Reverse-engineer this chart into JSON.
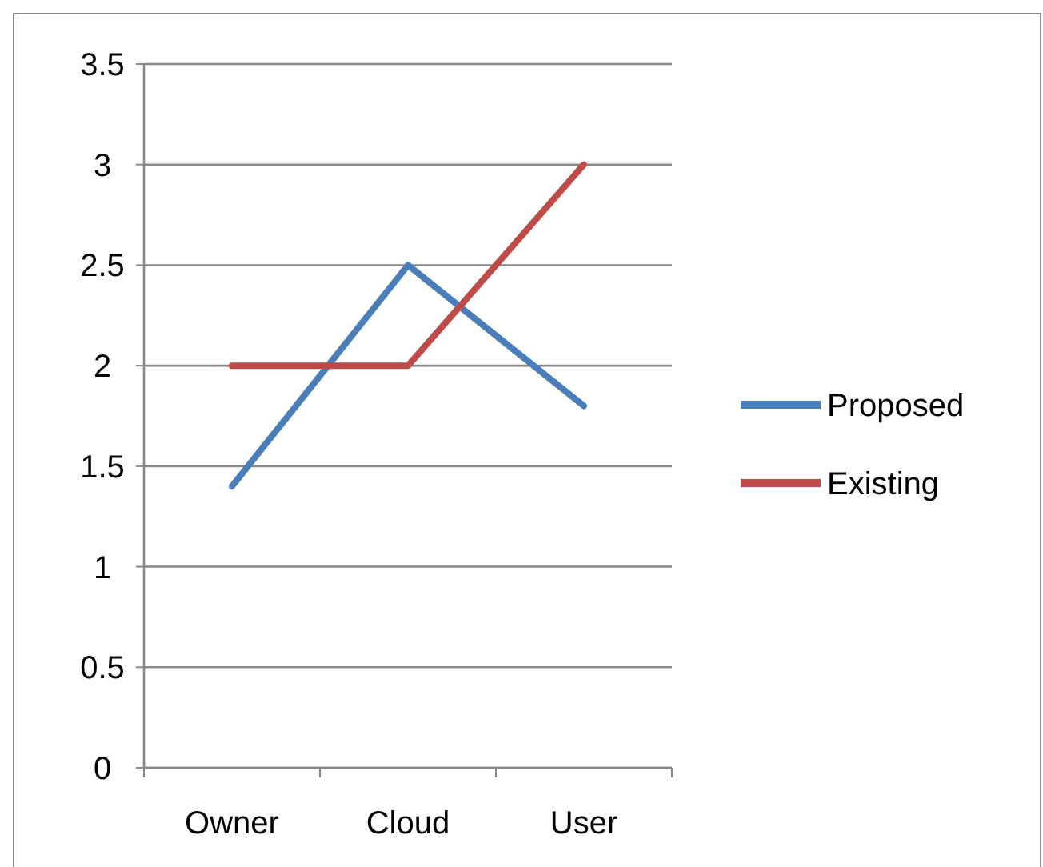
{
  "chart_data": {
    "type": "line",
    "categories": [
      "Owner",
      "Cloud",
      "User"
    ],
    "series": [
      {
        "name": "Proposed",
        "color": "#4a7ebb",
        "values": [
          1.4,
          2.5,
          1.8
        ]
      },
      {
        "name": "Existing",
        "color": "#be4b48",
        "values": [
          2,
          2,
          3
        ]
      }
    ],
    "ylim": [
      0,
      3.5
    ],
    "yticks": [
      0,
      {
        "value": 0.5,
        "label": "0.5"
      },
      1,
      {
        "value": 1.5,
        "label": "1.5"
      },
      2,
      {
        "value": 2.5,
        "label": "2.5"
      },
      3,
      {
        "value": 3.5,
        "label": "3.5"
      }
    ],
    "grid": "y",
    "legend": "right",
    "marker": "none",
    "line_style": "solid"
  }
}
